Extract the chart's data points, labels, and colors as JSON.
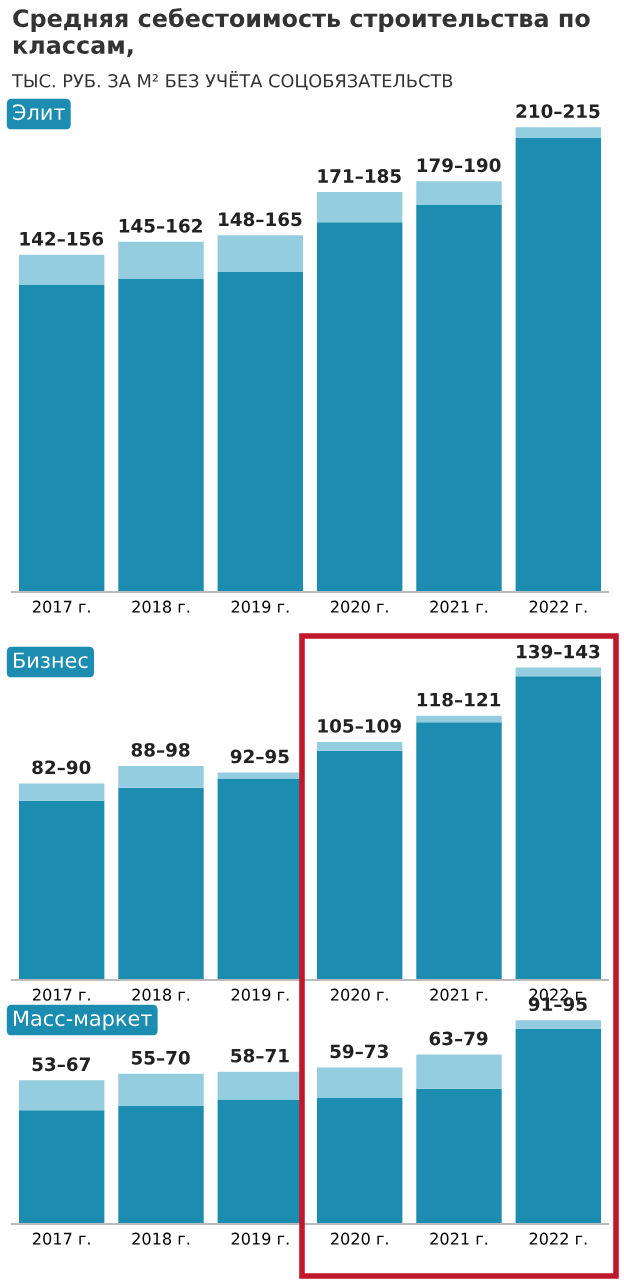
{
  "chart_data": [
    {
      "type": "other",
      "title": "Средняя себестоимость строительства по классам,",
      "subtitle": "ТЫС. РУБ. ЗА М² БЕЗ УЧЁТА СОЦОБЯЗАТЕЛЬСТВ"
    },
    {
      "type": "bar",
      "title": "Элит",
      "stacked": true,
      "categories": [
        "2017 г.",
        "2018 г.",
        "2019 г.",
        "2020 г.",
        "2021 г.",
        "2022 г."
      ],
      "tick_labels": "x",
      "totals": [
        "156",
        "162",
        "165",
        "185",
        "190",
        "215"
      ],
      "series": [
        {
          "color": "#1c8db0",
          "values": [
            142,
            145,
            148,
            171,
            179,
            210
          ],
          "value_labels": [
            "142–",
            "145–",
            "148–",
            "171–",
            "179–",
            "210–"
          ]
        },
        {
          "color": "#94cde0",
          "values": [
            14,
            17,
            17,
            14,
            11,
            5
          ]
        }
      ]
    },
    {
      "type": "bar",
      "title": "Бизнес",
      "stacked": true,
      "categories": [
        "2017 г.",
        "2018 г.",
        "2019 г.",
        "2020 г.",
        "2021 г.",
        "2022 г."
      ],
      "tick_labels": "x",
      "totals": [
        "90",
        "98",
        "95",
        "109",
        "121",
        "143"
      ],
      "series": [
        {
          "color": "#1c8db0",
          "values": [
            82,
            88,
            92,
            105,
            118,
            139
          ],
          "value_labels": [
            "82–",
            "88–",
            "92–",
            "105–",
            "118–",
            "139–"
          ]
        },
        {
          "color": "#94cde0",
          "values": [
            8,
            10,
            3,
            4,
            3,
            4
          ]
        }
      ]
    },
    {
      "type": "bar",
      "title": "Масс-маркет",
      "stacked": true,
      "categories": [
        "2017 г.",
        "2018 г.",
        "2019 г.",
        "2020 г.",
        "2021 г.",
        "2022 г."
      ],
      "tick_labels": "x",
      "totals": [
        "67",
        "70",
        "71",
        "73",
        "79",
        "95"
      ],
      "series": [
        {
          "color": "#1c8db0",
          "values": [
            53,
            55,
            58,
            59,
            63,
            91
          ],
          "value_labels": [
            "53–",
            "55–",
            "58–",
            "59–",
            "63–",
            "91–"
          ]
        },
        {
          "color": "#94cde0",
          "values": [
            14,
            15,
            13,
            14,
            16,
            4
          ]
        }
      ]
    }
  ]
}
